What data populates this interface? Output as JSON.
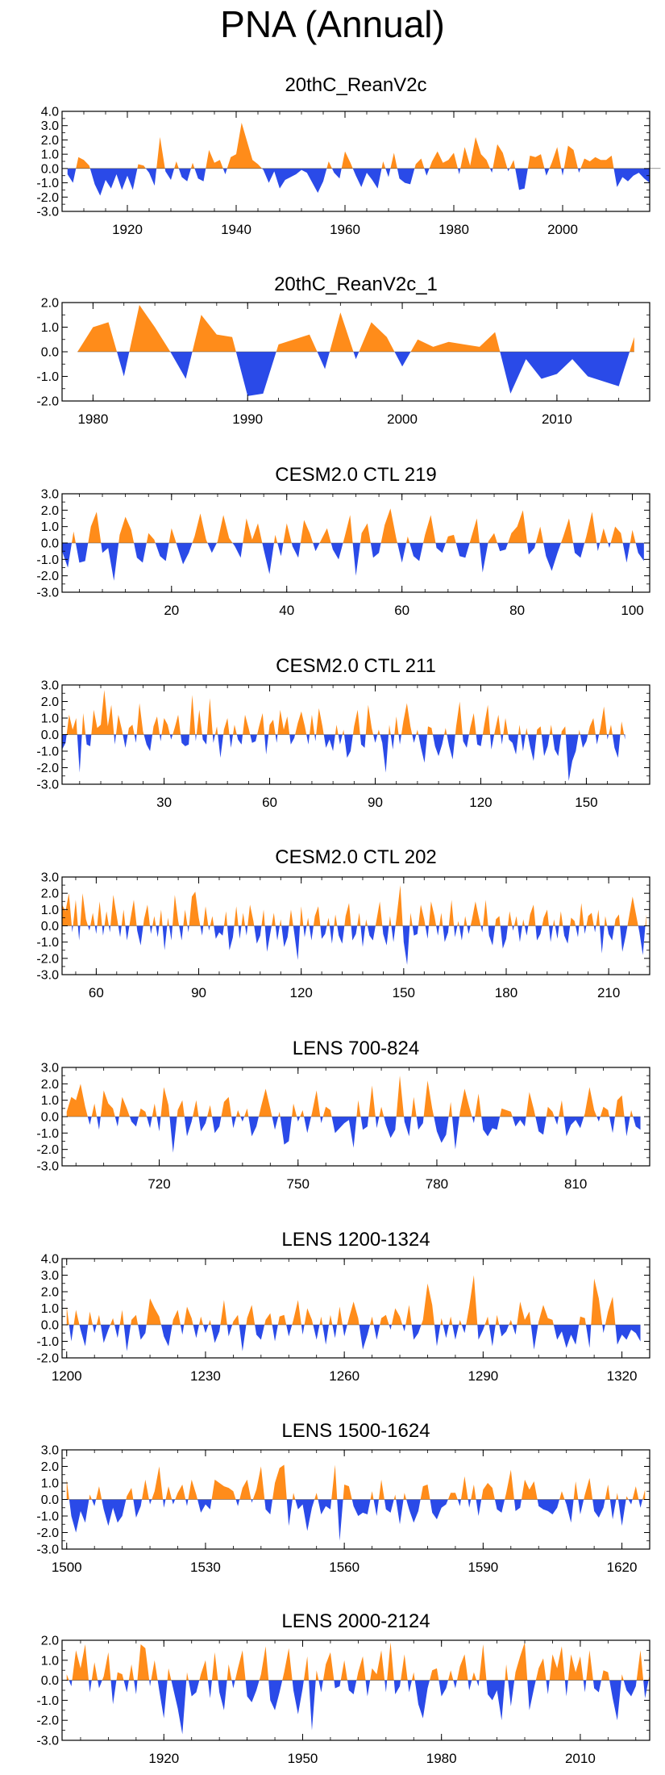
{
  "title": "PNA (Annual)",
  "colors": {
    "positive": "#ff8c1a",
    "negative": "#2a4ae8",
    "axis": "#000000"
  },
  "chart_data": [
    {
      "type": "area",
      "title": "20thC_ReanV2c",
      "xlim": [
        1908,
        2016
      ],
      "ylim": [
        -3,
        4
      ],
      "yticks": [
        -3,
        -2,
        -1,
        0,
        1,
        2,
        3,
        4
      ],
      "xticks": [
        1920,
        1940,
        1960,
        1980,
        2000
      ],
      "x_start": 1909,
      "values": [
        -0.4,
        -1.0,
        0.8,
        0.6,
        0.2,
        -1.1,
        -1.9,
        -0.8,
        -1.4,
        -0.4,
        -1.5,
        -0.5,
        -1.5,
        0.3,
        0.2,
        -0.3,
        -1.2,
        2.2,
        -0.2,
        -0.8,
        0.5,
        -0.6,
        -0.9,
        0.4,
        -0.7,
        -0.9,
        1.3,
        0.4,
        0.6,
        -0.4,
        0.8,
        1.0,
        3.2,
        1.9,
        0.6,
        0.3,
        -0.1,
        -1.0,
        -0.2,
        -1.4,
        -0.8,
        -0.6,
        -0.4,
        -0.1,
        -0.3,
        -1.0,
        -1.7,
        -0.9,
        0.5,
        -0.3,
        -0.7,
        1.2,
        0.4,
        -0.5,
        -1.3,
        -0.3,
        -0.8,
        -1.4,
        0.5,
        -0.6,
        1.1,
        -0.7,
        -1.0,
        -1.1,
        0.3,
        0.7,
        -0.5,
        0.5,
        1.2,
        0.4,
        0.6,
        1.1,
        -0.4,
        1.5,
        0.2,
        2.2,
        1.0,
        0.6,
        -0.3,
        1.7,
        1.1,
        -0.2,
        0.6,
        -1.5,
        -1.4,
        0.9,
        0.8,
        1.0,
        -0.5,
        0.4,
        1.5,
        -0.5,
        1.6,
        1.3,
        -0.3,
        0.7,
        0.5,
        0.8,
        0.6,
        0.6,
        0.9,
        -1.3,
        -0.6,
        -0.9,
        -0.5,
        -0.3,
        -0.7,
        -1.0,
        -1.2,
        0.8
      ]
    },
    {
      "type": "area",
      "title": "20thC_ReanV2c_1",
      "xlim": [
        1978,
        2016
      ],
      "ylim": [
        -2,
        2
      ],
      "yticks": [
        -2,
        -1,
        0,
        1,
        2
      ],
      "xticks": [
        1980,
        1990,
        2000,
        2010
      ],
      "x_start": 1979,
      "values": [
        0.0,
        1.0,
        1.2,
        -1.0,
        1.9,
        1.0,
        0.0,
        -1.1,
        1.5,
        0.7,
        0.6,
        -1.8,
        -1.7,
        0.3,
        0.5,
        0.7,
        -0.7,
        1.6,
        -0.3,
        1.2,
        0.6,
        -0.6,
        0.5,
        0.2,
        0.4,
        0.3,
        0.2,
        0.8,
        -1.7,
        -0.3,
        -1.1,
        -0.9,
        -0.3,
        -1.0,
        -1.2,
        -1.4,
        0.6
      ]
    },
    {
      "type": "area",
      "title": "CESM2.0 CTL 219",
      "xlim": [
        1,
        103
      ],
      "ylim": [
        -3,
        3
      ],
      "yticks": [
        -3,
        -2,
        -1,
        0,
        1,
        2,
        3
      ],
      "xticks": [
        20,
        40,
        60,
        80,
        100
      ],
      "x_start": 1,
      "values": [
        -0.5,
        -1.5,
        0.7,
        -1.2,
        -1.1,
        1.0,
        1.9,
        -0.6,
        -0.3,
        -2.3,
        0.5,
        1.6,
        0.8,
        -0.9,
        -1.2,
        0.6,
        0.2,
        -0.8,
        -1.1,
        0.9,
        -0.2,
        -1.3,
        -0.6,
        0.4,
        1.8,
        0.2,
        -0.6,
        0.1,
        1.7,
        0.3,
        -0.2,
        -0.9,
        1.5,
        0.2,
        1.2,
        -0.4,
        -1.9,
        0.5,
        -0.8,
        1.2,
        -0.2,
        -0.9,
        1.4,
        0.6,
        -0.5,
        0.2,
        0.9,
        -0.4,
        -1.0,
        0.3,
        1.7,
        -2.0,
        0.6,
        1.2,
        -0.9,
        -0.6,
        1.1,
        2.1,
        0.3,
        -1.2,
        0.4,
        -0.8,
        -1.1,
        0.5,
        1.7,
        -0.3,
        -0.6,
        0.4,
        0.5,
        -0.8,
        -0.9,
        0.3,
        1.5,
        -1.8,
        0.1,
        0.6,
        -0.5,
        -0.4,
        0.6,
        1.0,
        2.0,
        -0.7,
        -0.3,
        1.0,
        -0.8,
        -1.7,
        -0.6,
        0.4,
        1.5,
        -0.6,
        -0.9,
        0.4,
        1.9,
        -0.5,
        0.9,
        -0.3,
        1.0,
        0.6,
        -1.2,
        0.8,
        -0.6,
        -1.1
      ]
    },
    {
      "type": "area",
      "title": "CESM2.0 CTL 211",
      "xlim": [
        1,
        168
      ],
      "ylim": [
        -3,
        3
      ],
      "yticks": [
        -3,
        -2,
        -1,
        0,
        1,
        2,
        3
      ],
      "xticks": [
        30,
        60,
        90,
        120,
        150
      ],
      "x_start": 1,
      "values": [
        -0.9,
        -0.5,
        1.2,
        0.3,
        1.0,
        -2.3,
        1.3,
        -0.6,
        -0.7,
        1.5,
        0.4,
        0.6,
        2.7,
        0.5,
        1.8,
        -0.6,
        1.2,
        0.3,
        -0.8,
        0.4,
        0.6,
        -0.5,
        1.9,
        0.2,
        -0.6,
        -1.0,
        0.5,
        1.1,
        -0.4,
        1.0,
        0.6,
        -0.3,
        0.4,
        1.2,
        -0.5,
        -0.7,
        -0.6,
        2.4,
        -0.4,
        1.5,
        -0.3,
        -0.6,
        2.2,
        -0.5,
        0.5,
        -1.4,
        0.3,
        1.0,
        -0.8,
        0.6,
        -0.3,
        -0.6,
        1.2,
        0.4,
        -0.5,
        -0.4,
        0.5,
        1.3,
        -1.2,
        0.6,
        0.9,
        -0.5,
        1.5,
        0.3,
        1.1,
        -0.6,
        -0.2,
        0.7,
        1.4,
        0.5,
        -0.6,
        1.2,
        -0.4,
        1.6,
        0.5,
        -0.8,
        -0.3,
        -1.0,
        0.6,
        -0.6,
        0.3,
        -1.4,
        -1.0,
        0.5,
        1.5,
        -0.6,
        -0.8,
        1.8,
        0.4,
        -0.5,
        0.3,
        -0.5,
        -2.3,
        0.6,
        -0.9,
        1.1,
        -0.6,
        0.8,
        1.9,
        0.5,
        -0.5,
        0.3,
        -0.8,
        -1.7,
        0.5,
        0.4,
        -0.7,
        -1.3,
        -0.6,
        0.4,
        -0.7,
        -1.5,
        0.5,
        2.0,
        -0.4,
        -0.8,
        0.4,
        1.3,
        -0.6,
        -0.7,
        0.6,
        1.8,
        -0.9,
        0.2,
        1.2,
        -0.6,
        1.0,
        -0.3,
        -0.5,
        -1.2,
        0.6,
        -1.0,
        0.4,
        -0.7,
        -1.6,
        0.3,
        0.5,
        -1.3,
        -0.7,
        0.6,
        -0.9,
        -1.3,
        0.2,
        0.5,
        -2.8,
        -1.6,
        -1.0,
        0.3,
        -0.8,
        -0.4,
        0.5,
        1.0,
        -0.6,
        0.4,
        1.7,
        -0.3,
        0.6,
        -0.8,
        -1.4,
        0.8,
        -0.3
      ]
    },
    {
      "type": "area",
      "title": "CESM2.0 CTL 202",
      "xlim": [
        50,
        222
      ],
      "ylim": [
        -3,
        3
      ],
      "yticks": [
        -3,
        -2,
        -1,
        0,
        1,
        2,
        3
      ],
      "xticks": [
        60,
        90,
        120,
        150,
        180,
        210
      ],
      "x_start": 50,
      "values": [
        1.3,
        0.9,
        2.0,
        -0.4,
        1.6,
        -0.9,
        2.0,
        0.4,
        -0.3,
        0.8,
        -0.5,
        1.5,
        -0.6,
        0.9,
        -0.4,
        1.9,
        0.6,
        -0.7,
        1.0,
        -0.9,
        0.4,
        1.6,
        -0.3,
        -1.2,
        0.4,
        1.3,
        -0.5,
        0.6,
        -0.7,
        1.0,
        -1.5,
        0.5,
        -0.9,
        1.9,
        0.3,
        -0.9,
        1.0,
        -0.4,
        1.8,
        2.1,
        0.5,
        -0.6,
        1.2,
        -0.3,
        0.6,
        -0.8,
        -0.4,
        -0.6,
        0.9,
        -1.5,
        -0.7,
        1.2,
        -0.8,
        0.8,
        -0.6,
        1.3,
        0.3,
        -1.1,
        -0.6,
        1.0,
        -1.6,
        -0.4,
        0.8,
        -0.9,
        0.4,
        -1.3,
        -0.7,
        1.0,
        -0.5,
        -2.1,
        1.2,
        -0.7,
        0.5,
        -0.9,
        0.6,
        1.2,
        -0.8,
        -0.5,
        0.5,
        -1.1,
        0.7,
        -0.6,
        -1.1,
        0.6,
        1.4,
        -0.9,
        -0.5,
        0.8,
        -1.3,
        0.4,
        -0.6,
        -0.9,
        0.3,
        1.5,
        -0.5,
        -1.2,
        0.6,
        -1.0,
        0.7,
        2.5,
        -1.0,
        -2.4,
        0.8,
        -0.6,
        -0.5,
        1.3,
        0.4,
        -0.8,
        1.5,
        0.6,
        -0.6,
        0.8,
        -1.0,
        -0.4,
        1.6,
        -0.7,
        0.3,
        -0.9,
        0.6,
        -0.5,
        0.4,
        1.5,
        0.5,
        -0.4,
        1.6,
        -0.6,
        -1.2,
        0.4,
        0.6,
        -1.4,
        -0.8,
        0.9,
        -0.3,
        0.6,
        -1.0,
        0.4,
        -0.6,
        0.7,
        1.3,
        -0.9,
        -0.5,
        0.5,
        1.0,
        -1.0,
        0.4,
        -0.8,
        0.9,
        -0.6,
        -1.1,
        0.5,
        0.3,
        -0.7,
        1.4,
        -0.5,
        0.6,
        0.8,
        -0.4,
        1.0,
        -1.7,
        0.6,
        -0.5,
        -0.9,
        0.4,
        0.7,
        -1.6,
        -0.6,
        0.6,
        1.8,
        0.7,
        -0.4,
        -1.8,
        0.7
      ]
    },
    {
      "type": "area",
      "title": "LENS 700-824",
      "xlim": [
        699,
        826
      ],
      "ylim": [
        -3,
        3
      ],
      "yticks": [
        -3,
        -2,
        -1,
        0,
        1,
        2,
        3
      ],
      "xticks": [
        720,
        750,
        780,
        810
      ],
      "x_start": 700,
      "values": [
        0.3,
        1.2,
        1.0,
        2.0,
        0.6,
        -0.5,
        0.8,
        -0.8,
        1.6,
        0.8,
        0.5,
        -0.6,
        1.2,
        0.5,
        -0.3,
        -0.6,
        0.5,
        0.3,
        -0.7,
        0.8,
        -0.9,
        1.8,
        0.7,
        -2.2,
        0.4,
        1.0,
        -1.2,
        -0.3,
        1.0,
        -0.9,
        -0.4,
        0.7,
        -1.0,
        -0.6,
        0.9,
        1.2,
        -0.7,
        0.4,
        -0.3,
        0.5,
        -1.2,
        -0.6,
        0.6,
        1.7,
        0.5,
        -0.8,
        0.3,
        -1.7,
        -1.5,
        0.8,
        -0.3,
        0.4,
        -1.0,
        0.2,
        1.6,
        -0.4,
        0.6,
        0.4,
        -1.0,
        -0.7,
        -0.4,
        -0.2,
        -1.9,
        1.0,
        -0.8,
        -0.6,
        1.9,
        -0.7,
        0.6,
        -0.5,
        -1.3,
        -0.8,
        2.5,
        -0.3,
        -1.2,
        1.2,
        -0.8,
        -0.4,
        2.2,
        0.5,
        -0.9,
        -1.6,
        -1.1,
        0.9,
        -2.0,
        0.3,
        1.7,
        0.6,
        -0.4,
        1.4,
        -0.8,
        -1.2,
        -0.7,
        -0.8,
        0.5,
        0.4,
        0.3,
        -0.6,
        -0.2,
        -0.6,
        1.5,
        0.4,
        -0.9,
        -1.1,
        0.6,
        0.3,
        -0.5,
        1.0,
        -1.2,
        -0.5,
        -0.2,
        -0.7,
        0.2,
        1.8,
        0.4,
        -0.3,
        0.6,
        0.4,
        -1.0,
        1.0,
        1.3,
        -1.2,
        0.4,
        -0.6,
        -0.8
      ]
    },
    {
      "type": "area",
      "title": "LENS 1200-1324",
      "xlim": [
        1199,
        1326
      ],
      "ylim": [
        -2,
        4
      ],
      "yticks": [
        -2,
        -1,
        0,
        1,
        2,
        3,
        4
      ],
      "xticks": [
        1200,
        1230,
        1260,
        1290,
        1320
      ],
      "x_start": 1200,
      "values": [
        1.1,
        -1.0,
        0.9,
        -0.3,
        -1.3,
        0.8,
        -0.5,
        0.6,
        -1.1,
        -0.3,
        0.4,
        -0.8,
        0.9,
        -1.6,
        0.3,
        0.6,
        -0.9,
        -0.5,
        1.6,
        1.0,
        0.5,
        -0.7,
        -1.3,
        0.3,
        0.9,
        -0.6,
        1.1,
        0.4,
        -0.8,
        0.5,
        -0.5,
        0.3,
        -1.1,
        -0.4,
        1.5,
        -0.7,
        0.2,
        0.6,
        -1.6,
        0.4,
        1.2,
        -0.6,
        -0.9,
        0.3,
        0.7,
        -1.0,
        0.5,
        0.6,
        -0.7,
        0.3,
        1.5,
        -0.6,
        1.0,
        0.3,
        -0.9,
        0.5,
        -1.2,
        0.6,
        -0.8,
        1.1,
        -0.7,
        0.4,
        1.4,
        0.4,
        -1.5,
        -0.6,
        0.5,
        -0.9,
        0.4,
        0.6,
        -0.3,
        1.0,
        0.5,
        -0.4,
        1.2,
        -0.9,
        -0.5,
        0.3,
        2.5,
        1.2,
        -1.3,
        0.4,
        -0.8,
        0.5,
        -0.9,
        0.3,
        -0.5,
        1.1,
        3.0,
        -0.9,
        -0.3,
        0.5,
        -1.3,
        0.6,
        -0.7,
        -0.4,
        0.3,
        -0.6,
        1.4,
        0.3,
        0.8,
        -1.5,
        0.2,
        1.2,
        0.4,
        0.3,
        -0.9,
        -0.4,
        -1.4,
        -0.6,
        -1.2,
        0.5,
        0.4,
        -1.4,
        2.8,
        1.6,
        -0.5,
        0.8,
        1.7,
        -1.2,
        -0.6,
        -0.9,
        -0.3,
        -0.5,
        -1.0
      ]
    },
    {
      "type": "area",
      "title": "LENS 1500-1624",
      "xlim": [
        1499,
        1626
      ],
      "ylim": [
        -3,
        3
      ],
      "yticks": [
        -3,
        -2,
        -1,
        0,
        1,
        2,
        3
      ],
      "xticks": [
        1500,
        1530,
        1560,
        1590,
        1620
      ],
      "x_start": 1500,
      "values": [
        1.2,
        -1.0,
        -2.0,
        -0.7,
        -1.4,
        0.3,
        -0.4,
        0.8,
        -0.6,
        -1.6,
        -0.5,
        -1.4,
        -1.0,
        0.2,
        0.7,
        -1.1,
        -0.4,
        1.2,
        -0.3,
        0.5,
        2.0,
        -0.5,
        0.8,
        -0.3,
        0.4,
        0.9,
        -0.4,
        1.2,
        0.3,
        -0.8,
        -0.3,
        -0.6,
        1.2,
        1.0,
        0.8,
        0.7,
        0.5,
        -0.4,
        0.7,
        1.2,
        -0.2,
        0.6,
        2.0,
        -0.6,
        -0.9,
        1.0,
        1.9,
        2.1,
        -1.6,
        0.4,
        -0.6,
        -0.3,
        -1.9,
        -0.5,
        0.4,
        -0.9,
        -0.4,
        -0.6,
        2.1,
        -2.5,
        0.9,
        0.8,
        -0.4,
        -1.0,
        -0.8,
        -0.9,
        0.5,
        -1.0,
        1.2,
        -0.6,
        -0.8,
        0.3,
        -1.5,
        0.4,
        -0.6,
        -1.4,
        -0.7,
        0.8,
        0.9,
        -0.8,
        -1.2,
        -0.5,
        -0.3,
        0.4,
        0.4,
        -0.4,
        1.4,
        -0.5,
        0.9,
        -1.0,
        0.6,
        1.0,
        0.7,
        -0.6,
        -0.8,
        0.4,
        1.8,
        -0.7,
        -0.5,
        1.2,
        0.6,
        1.1,
        -0.4,
        -0.6,
        -0.7,
        -0.9,
        -0.5,
        0.5,
        -0.3,
        -1.4,
        1.1,
        -0.9,
        0.3,
        1.3,
        -0.7,
        -1.1,
        -0.5,
        0.9,
        -1.2,
        0.4,
        -1.6,
        0.2,
        -0.3,
        0.8,
        -0.5,
        0.6
      ]
    },
    {
      "type": "area",
      "title": "LENS 2000-2124",
      "xlim": [
        1898,
        2025
      ],
      "ylim": [
        -3,
        2
      ],
      "yticks": [
        -3,
        -2,
        -1,
        0,
        1,
        2
      ],
      "xticks": [
        1920,
        1950,
        1980,
        2010
      ],
      "x_start": 1899,
      "values": [
        0.3,
        -0.3,
        1.5,
        0.6,
        1.8,
        -0.6,
        0.9,
        -0.4,
        0.2,
        1.4,
        -1.2,
        0.4,
        0.3,
        -0.6,
        0.8,
        -0.7,
        1.8,
        1.6,
        -0.3,
        1.0,
        -0.5,
        -1.9,
        0.6,
        -0.4,
        -1.4,
        -2.7,
        0.4,
        -0.8,
        -0.6,
        0.3,
        1.0,
        -0.9,
        1.4,
        -0.6,
        -1.5,
        0.8,
        -0.4,
        0.6,
        1.5,
        -0.8,
        -1.1,
        -0.5,
        0.3,
        1.7,
        -1.0,
        -1.5,
        -0.6,
        0.4,
        1.6,
        -0.5,
        -1.7,
        -0.4,
        1.2,
        -2.5,
        0.5,
        -0.6,
        0.8,
        1.4,
        -0.4,
        -0.3,
        1.0,
        -0.5,
        -0.7,
        0.4,
        1.2,
        -0.8,
        0.6,
        0.3,
        1.5,
        -0.6,
        1.9,
        -0.7,
        -0.3,
        1.3,
        -0.6,
        0.4,
        -1.2,
        -1.9,
        -0.4,
        0.5,
        0.6,
        -0.8,
        -0.4,
        0.5,
        -0.4,
        0.7,
        1.3,
        -0.5,
        0.4,
        -0.3,
        1.8,
        -0.7,
        -1.0,
        -0.5,
        -2.0,
        0.8,
        -1.3,
        0.4,
        1.2,
        1.9,
        -1.5,
        -0.4,
        0.6,
        1.1,
        -0.7,
        1.3,
        0.6,
        1.7,
        -0.8,
        1.3,
        0.4,
        1.2,
        -0.6,
        1.5,
        -0.4,
        -0.6,
        0.5,
        0.4,
        -0.9,
        -2.0,
        0.3,
        -0.5,
        -0.8,
        -0.3,
        1.5,
        -0.9,
        0.3
      ]
    }
  ]
}
